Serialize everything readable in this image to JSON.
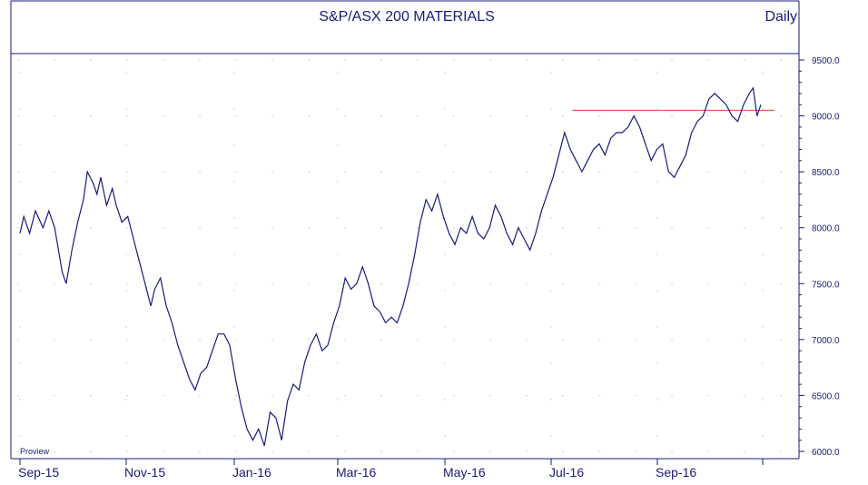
{
  "chart_data": {
    "type": "line",
    "title": "S&P/ASX 200 MATERIALS",
    "frequency_label": "Daily",
    "watermark": "Proview",
    "ylim": [
      6000,
      9500
    ],
    "y_ticks": [
      "9500.0",
      "9000.0",
      "8500.0",
      "8000.0",
      "7500.0",
      "7000.0",
      "6500.0",
      "6000.0"
    ],
    "x_ticks": [
      "Sep-15",
      "Nov-15",
      "Jan-16",
      "Mar-16",
      "May-16",
      "Jul-16",
      "Sep-16"
    ],
    "grid": true,
    "colors": {
      "series": "#1a1a7a",
      "resistance": "#e04040",
      "axis": "#1a1a7a",
      "grid": "#b0b0b0"
    },
    "series": [
      {
        "values": [
          [
            0,
            7950
          ],
          [
            2,
            8100
          ],
          [
            5,
            7950
          ],
          [
            8,
            8150
          ],
          [
            12,
            8000
          ],
          [
            15,
            8150
          ],
          [
            18,
            8000
          ],
          [
            20,
            7800
          ],
          [
            22,
            7600
          ],
          [
            24,
            7500
          ],
          [
            27,
            7800
          ],
          [
            30,
            8050
          ],
          [
            33,
            8250
          ],
          [
            35,
            8500
          ],
          [
            38,
            8400
          ],
          [
            40,
            8300
          ],
          [
            42,
            8450
          ],
          [
            45,
            8200
          ],
          [
            48,
            8350
          ],
          [
            50,
            8200
          ],
          [
            53,
            8050
          ],
          [
            56,
            8100
          ],
          [
            59,
            7900
          ],
          [
            62,
            7700
          ],
          [
            65,
            7500
          ],
          [
            68,
            7300
          ],
          [
            70,
            7450
          ],
          [
            73,
            7550
          ],
          [
            76,
            7300
          ],
          [
            79,
            7150
          ],
          [
            82,
            6950
          ],
          [
            85,
            6800
          ],
          [
            88,
            6650
          ],
          [
            91,
            6550
          ],
          [
            94,
            6700
          ],
          [
            97,
            6750
          ],
          [
            100,
            6900
          ],
          [
            103,
            7050
          ],
          [
            106,
            7050
          ],
          [
            109,
            6950
          ],
          [
            112,
            6650
          ],
          [
            115,
            6400
          ],
          [
            118,
            6200
          ],
          [
            121,
            6100
          ],
          [
            124,
            6200
          ],
          [
            127,
            6050
          ],
          [
            130,
            6350
          ],
          [
            133,
            6300
          ],
          [
            136,
            6100
          ],
          [
            139,
            6450
          ],
          [
            142,
            6600
          ],
          [
            145,
            6550
          ],
          [
            148,
            6800
          ],
          [
            151,
            6950
          ],
          [
            154,
            7050
          ],
          [
            157,
            6900
          ],
          [
            160,
            6950
          ],
          [
            163,
            7150
          ],
          [
            166,
            7300
          ],
          [
            169,
            7550
          ],
          [
            172,
            7450
          ],
          [
            175,
            7500
          ],
          [
            178,
            7650
          ],
          [
            181,
            7500
          ],
          [
            184,
            7300
          ],
          [
            187,
            7250
          ],
          [
            190,
            7150
          ],
          [
            193,
            7200
          ],
          [
            196,
            7150
          ],
          [
            199,
            7300
          ],
          [
            202,
            7500
          ],
          [
            205,
            7750
          ],
          [
            208,
            8050
          ],
          [
            211,
            8250
          ],
          [
            214,
            8150
          ],
          [
            217,
            8300
          ],
          [
            220,
            8100
          ],
          [
            223,
            7950
          ],
          [
            226,
            7850
          ],
          [
            229,
            8000
          ],
          [
            232,
            7950
          ],
          [
            235,
            8100
          ],
          [
            238,
            7950
          ],
          [
            241,
            7900
          ],
          [
            244,
            8000
          ],
          [
            247,
            8200
          ],
          [
            250,
            8100
          ],
          [
            253,
            7950
          ],
          [
            256,
            7850
          ],
          [
            259,
            8000
          ],
          [
            262,
            7900
          ],
          [
            265,
            7800
          ],
          [
            268,
            7950
          ],
          [
            271,
            8150
          ],
          [
            274,
            8300
          ],
          [
            277,
            8450
          ],
          [
            280,
            8650
          ],
          [
            283,
            8850
          ],
          [
            286,
            8700
          ],
          [
            289,
            8600
          ],
          [
            292,
            8500
          ],
          [
            295,
            8600
          ],
          [
            298,
            8700
          ],
          [
            301,
            8750
          ],
          [
            304,
            8650
          ],
          [
            307,
            8800
          ],
          [
            310,
            8850
          ],
          [
            313,
            8850
          ],
          [
            316,
            8900
          ],
          [
            319,
            9000
          ],
          [
            322,
            8900
          ],
          [
            325,
            8750
          ],
          [
            328,
            8600
          ],
          [
            331,
            8700
          ],
          [
            334,
            8750
          ],
          [
            337,
            8500
          ],
          [
            340,
            8450
          ],
          [
            343,
            8550
          ],
          [
            346,
            8650
          ],
          [
            349,
            8850
          ],
          [
            352,
            8950
          ],
          [
            355,
            9000
          ],
          [
            358,
            9150
          ],
          [
            361,
            9200
          ],
          [
            364,
            9150
          ],
          [
            367,
            9100
          ],
          [
            370,
            9000
          ],
          [
            373,
            8950
          ],
          [
            376,
            9100
          ],
          [
            379,
            9200
          ],
          [
            381,
            9250
          ],
          [
            383,
            9000
          ],
          [
            385,
            9100
          ]
        ]
      }
    ],
    "resistance_level": 9050,
    "resistance_start_x": 287
  }
}
